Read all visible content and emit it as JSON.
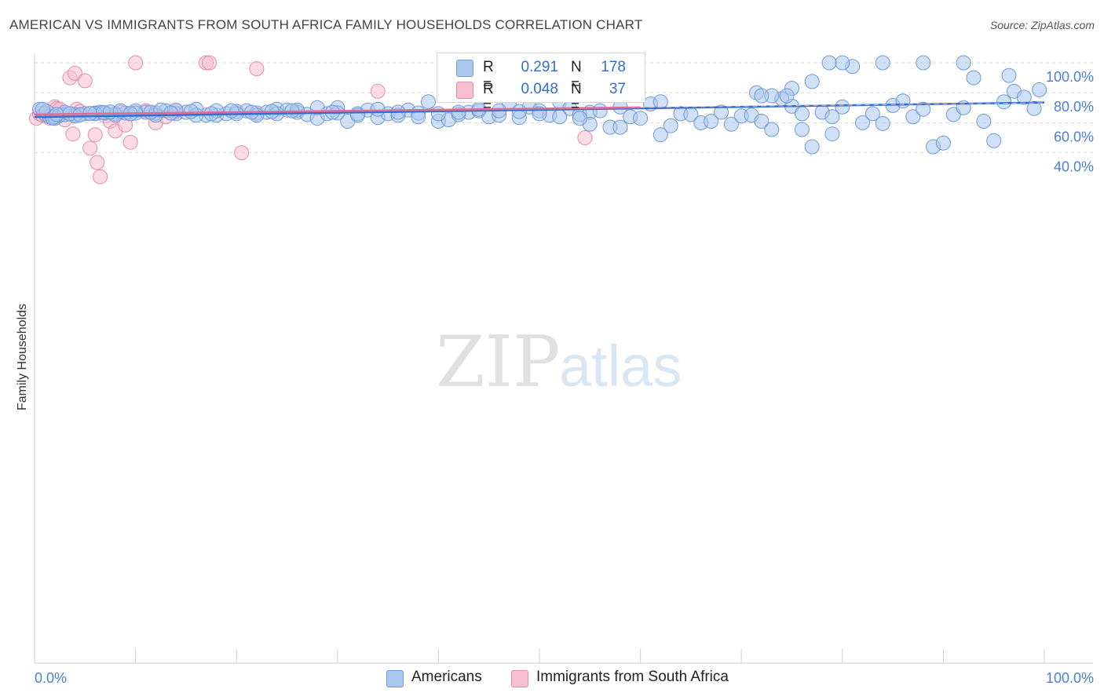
{
  "title": "AMERICAN VS IMMIGRANTS FROM SOUTH AFRICA FAMILY HOUSEHOLDS CORRELATION CHART",
  "source": "Source: ZipAtlas.com",
  "watermark": {
    "zip": "ZIP",
    "atlas": "atlas"
  },
  "colors": {
    "blue_fill": "#a9c6ef",
    "blue_stroke": "#6f9ad8",
    "blue_line": "#2f6fd0",
    "pink_fill": "#f7c0d0",
    "pink_stroke": "#e98aa8",
    "pink_line": "#e06b94",
    "tick_text": "#4a7fd4",
    "grid": "#d9d9d9"
  },
  "legend": {
    "rows": [
      {
        "r_label": "R =",
        "r_value": "0.291",
        "n_label": "N =",
        "n_value": "178",
        "color": "#a9c6ef"
      },
      {
        "r_label": "R =",
        "r_value": "0.048",
        "n_label": "N =",
        "n_value": "37",
        "color": "#f7c0d0"
      }
    ]
  },
  "bottom_legend": [
    {
      "label": "Americans",
      "color": "#a9c6ef"
    },
    {
      "label": "Immigrants from South Africa",
      "color": "#f7c0d0"
    }
  ],
  "chart_data": {
    "type": "scatter",
    "title": "AMERICAN VS IMMIGRANTS FROM SOUTH AFRICA FAMILY HOUSEHOLDS CORRELATION CHART",
    "xlabel": "",
    "ylabel": "Family Households",
    "xlim": [
      0,
      100
    ],
    "ylim": [
      20,
      100
    ],
    "x_tick_labels": [
      "0.0%",
      "100.0%"
    ],
    "y_ticks": [
      40,
      60,
      80,
      100
    ],
    "y_tick_labels": [
      "40.0%",
      "60.0%",
      "80.0%",
      "100.0%"
    ],
    "grid": true,
    "legend_position": "top-center",
    "series": [
      {
        "name": "Americans",
        "r": 0.291,
        "n": 178,
        "trend": {
          "x": [
            0,
            100
          ],
          "y": [
            63.8,
            73.5
          ]
        },
        "points": [
          [
            0.5,
            69
          ],
          [
            1,
            66
          ],
          [
            1.5,
            64
          ],
          [
            2,
            63
          ],
          [
            2.5,
            65
          ],
          [
            3,
            65.5
          ],
          [
            4,
            65.5
          ],
          [
            5,
            66
          ],
          [
            6,
            66.5
          ],
          [
            6.5,
            67
          ],
          [
            7,
            66.5
          ],
          [
            8,
            66
          ],
          [
            9,
            66.5
          ],
          [
            10,
            68
          ],
          [
            11,
            67
          ],
          [
            12,
            66.5
          ],
          [
            13,
            68
          ],
          [
            14,
            66
          ],
          [
            15,
            67
          ],
          [
            16,
            69
          ],
          [
            17,
            65
          ],
          [
            18,
            65
          ],
          [
            19,
            66
          ],
          [
            20,
            67.5
          ],
          [
            21,
            68
          ],
          [
            22,
            66.5
          ],
          [
            23,
            67
          ],
          [
            24,
            69
          ],
          [
            25,
            68.5
          ],
          [
            26,
            67
          ],
          [
            27,
            65.5
          ],
          [
            28,
            63
          ],
          [
            29,
            66
          ],
          [
            30,
            70
          ],
          [
            31,
            61
          ],
          [
            32,
            66
          ],
          [
            33,
            68.5
          ],
          [
            34,
            63.5
          ],
          [
            35,
            66
          ],
          [
            36,
            65
          ],
          [
            37,
            68.5
          ],
          [
            38,
            66.5
          ],
          [
            39,
            74
          ],
          [
            40,
            61
          ],
          [
            41,
            62
          ],
          [
            42,
            65.5
          ],
          [
            43,
            67
          ],
          [
            44,
            68
          ],
          [
            45,
            64
          ],
          [
            46,
            65
          ],
          [
            47,
            73
          ],
          [
            48,
            63.5
          ],
          [
            49,
            70.5
          ],
          [
            50,
            68
          ],
          [
            51,
            65
          ],
          [
            52,
            74
          ],
          [
            53,
            69.5
          ],
          [
            54,
            65.5
          ],
          [
            55,
            67
          ],
          [
            56,
            68
          ],
          [
            57,
            57
          ],
          [
            58,
            70.5
          ],
          [
            59,
            64
          ],
          [
            60,
            63
          ],
          [
            61,
            72.5
          ],
          [
            62,
            74
          ],
          [
            63,
            58
          ],
          [
            64,
            66
          ],
          [
            65,
            65.5
          ],
          [
            66,
            60
          ],
          [
            67,
            61
          ],
          [
            68,
            67
          ],
          [
            69,
            59
          ],
          [
            70,
            64.5
          ],
          [
            71,
            65
          ],
          [
            72,
            61
          ],
          [
            73,
            55.5
          ],
          [
            74,
            76
          ],
          [
            75,
            71
          ],
          [
            76,
            66
          ],
          [
            77,
            87.5
          ],
          [
            78,
            67
          ],
          [
            79,
            64
          ],
          [
            80,
            70.5
          ],
          [
            81,
            97.5
          ],
          [
            82,
            60
          ],
          [
            83,
            66
          ],
          [
            84,
            59.5
          ],
          [
            85,
            71.5
          ],
          [
            86,
            74.5
          ],
          [
            87,
            64
          ],
          [
            88,
            69
          ],
          [
            89,
            44
          ],
          [
            90,
            46.5
          ],
          [
            91,
            65.5
          ],
          [
            92,
            70
          ],
          [
            93,
            90
          ],
          [
            94,
            61
          ],
          [
            95,
            48
          ],
          [
            96,
            74
          ],
          [
            97,
            81
          ],
          [
            98,
            77
          ],
          [
            99,
            69.5
          ],
          [
            99.5,
            82
          ],
          [
            96.5,
            91.5
          ],
          [
            92,
            100
          ],
          [
            88,
            100
          ],
          [
            84,
            100
          ],
          [
            80,
            100
          ],
          [
            78.7,
            100
          ],
          [
            75,
            83
          ],
          [
            74.5,
            78
          ],
          [
            73,
            78
          ],
          [
            71.5,
            80
          ],
          [
            72,
            78
          ],
          [
            79,
            52.5
          ],
          [
            77,
            44
          ],
          [
            76,
            55.5
          ],
          [
            62,
            52
          ],
          [
            58,
            57
          ],
          [
            55,
            59
          ],
          [
            54,
            63
          ],
          [
            52,
            64
          ],
          [
            50,
            66
          ],
          [
            48,
            67.5
          ],
          [
            46,
            68
          ],
          [
            44,
            69
          ],
          [
            42,
            67
          ],
          [
            40,
            66
          ],
          [
            38,
            64
          ],
          [
            36,
            67
          ],
          [
            34,
            69
          ],
          [
            32,
            65
          ],
          [
            30,
            66.5
          ],
          [
            28,
            70
          ],
          [
            26,
            68.5
          ],
          [
            24,
            66
          ],
          [
            22,
            65
          ],
          [
            20,
            66
          ],
          [
            18,
            68
          ],
          [
            16,
            65
          ],
          [
            14,
            68.5
          ],
          [
            12,
            65
          ],
          [
            10,
            66.5
          ],
          [
            8,
            65
          ],
          [
            6,
            66
          ],
          [
            4,
            64.5
          ],
          [
            2,
            64
          ],
          [
            3,
            67
          ],
          [
            1.2,
            67.5
          ],
          [
            0.8,
            69
          ],
          [
            1.8,
            63.2
          ],
          [
            2.2,
            65.5
          ],
          [
            3.5,
            66
          ],
          [
            4.5,
            65.3
          ],
          [
            5.5,
            66.2
          ],
          [
            6.8,
            66.8
          ],
          [
            7.5,
            67.2
          ],
          [
            8.5,
            68
          ],
          [
            9.5,
            66
          ],
          [
            11.5,
            67
          ],
          [
            12.5,
            68.5
          ],
          [
            13.5,
            66.5
          ],
          [
            15.5,
            67.5
          ],
          [
            17.5,
            66
          ],
          [
            19.5,
            68
          ],
          [
            21.5,
            67
          ],
          [
            23.5,
            67.5
          ],
          [
            25.5,
            68
          ],
          [
            29.5,
            67
          ]
        ]
      },
      {
        "name": "Immigrants from South Africa",
        "r": 0.048,
        "n": 37,
        "trend": {
          "x": [
            0,
            60
          ],
          "y": [
            65.5,
            70.2
          ]
        },
        "points": [
          [
            0.2,
            63
          ],
          [
            0.5,
            66
          ],
          [
            0.8,
            65
          ],
          [
            1.2,
            64.5
          ],
          [
            1.5,
            63
          ],
          [
            2,
            70.5
          ],
          [
            2.2,
            69.5
          ],
          [
            2.5,
            69
          ],
          [
            3,
            62
          ],
          [
            3.5,
            90
          ],
          [
            3.8,
            52.5
          ],
          [
            4,
            93
          ],
          [
            4.2,
            69
          ],
          [
            4.5,
            67.5
          ],
          [
            5,
            88
          ],
          [
            5.5,
            43
          ],
          [
            6,
            52
          ],
          [
            6.2,
            33.5
          ],
          [
            6.5,
            24
          ],
          [
            7,
            64.5
          ],
          [
            7.5,
            61
          ],
          [
            8,
            54.5
          ],
          [
            8.5,
            67
          ],
          [
            9,
            58.5
          ],
          [
            9.5,
            47
          ],
          [
            10,
            100
          ],
          [
            11,
            68
          ],
          [
            11.5,
            67
          ],
          [
            12,
            60
          ],
          [
            13,
            64
          ],
          [
            14,
            67.5
          ],
          [
            17,
            100
          ],
          [
            17.3,
            100
          ],
          [
            20.5,
            40
          ],
          [
            22,
            96
          ],
          [
            34,
            81
          ],
          [
            54.5,
            50
          ]
        ]
      }
    ]
  }
}
